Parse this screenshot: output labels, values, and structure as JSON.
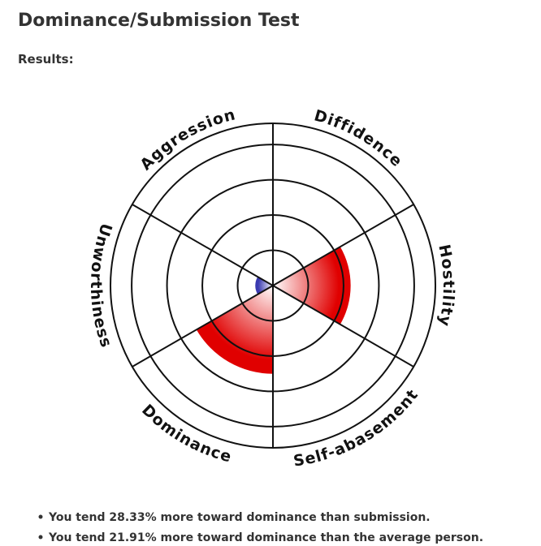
{
  "chart_data": {
    "type": "polar-area",
    "title": "Dominance/Submission Test",
    "subtitle": "Results:",
    "categories": [
      "Diffidence",
      "Hostility",
      "Self-abasement",
      "Dominance",
      "Unworthiness",
      "Aggression"
    ],
    "values": [
      0,
      2.2,
      0,
      2.5,
      0.5,
      0
    ],
    "colors": [
      "#3a3ab0",
      "#e00000",
      "#3a3ab0",
      "#e00000",
      "#3a3ab0",
      "#e00000"
    ],
    "rlim": [
      0,
      4.6
    ],
    "rticks": [
      1,
      2,
      3,
      4
    ],
    "annotations": [
      "You tend 28.33% more toward dominance than submission.",
      "You tend 21.91% more toward dominance than the average person."
    ]
  }
}
